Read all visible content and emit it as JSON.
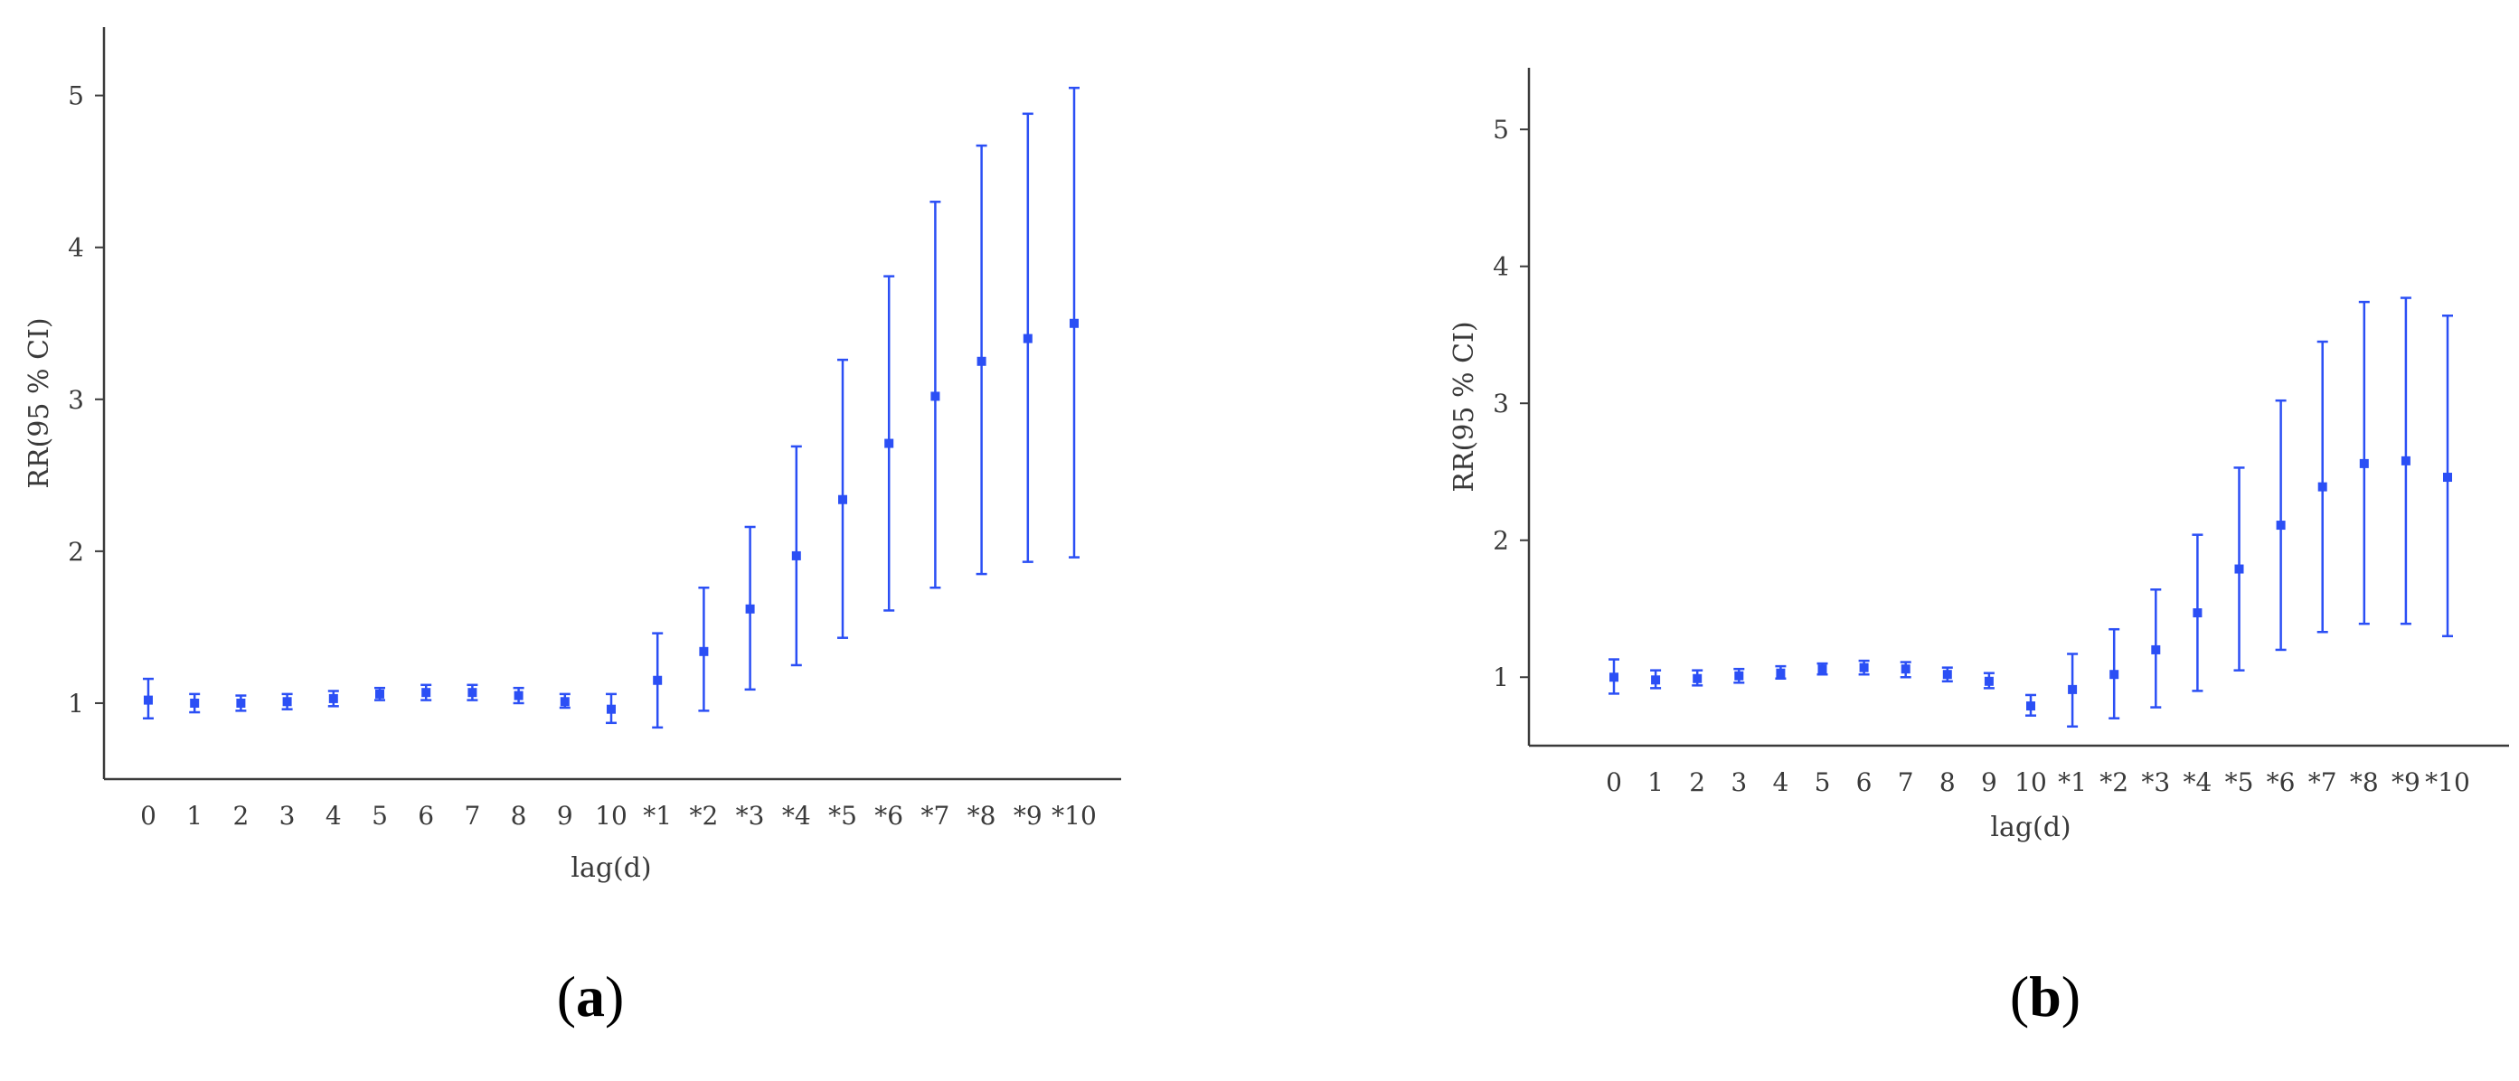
{
  "chart_data": [
    {
      "type": "scatter",
      "panel_label": "a",
      "xlabel": "lag(d)",
      "ylabel": "RR(95 % CI)",
      "ylim": [
        0.5,
        5.45
      ],
      "yticks": [
        1,
        2,
        3,
        4,
        5
      ],
      "categories": [
        "0",
        "1",
        "2",
        "3",
        "4",
        "5",
        "6",
        "7",
        "8",
        "9",
        "10",
        "*1",
        "*2",
        "*3",
        "*4",
        "*5",
        "*6",
        "*7",
        "*8",
        "*9",
        "*10"
      ],
      "series": [
        {
          "estimate": [
            1.02,
            1.0,
            1.0,
            1.01,
            1.03,
            1.06,
            1.07,
            1.07,
            1.05,
            1.01,
            0.96,
            1.15,
            1.34,
            1.62,
            1.97,
            2.34,
            2.71,
            3.02,
            3.25,
            3.4,
            3.5
          ],
          "lower": [
            0.9,
            0.94,
            0.95,
            0.96,
            0.98,
            1.02,
            1.02,
            1.02,
            1.0,
            0.97,
            0.87,
            0.84,
            0.95,
            1.09,
            1.25,
            1.43,
            1.61,
            1.76,
            1.85,
            1.93,
            1.96
          ],
          "upper": [
            1.16,
            1.06,
            1.05,
            1.06,
            1.08,
            1.1,
            1.12,
            1.12,
            1.1,
            1.06,
            1.06,
            1.46,
            1.76,
            2.16,
            2.69,
            3.26,
            3.81,
            4.3,
            4.67,
            4.88,
            5.05
          ]
        }
      ]
    },
    {
      "type": "scatter",
      "panel_label": "b",
      "xlabel": "lag(d)",
      "ylabel": "RR(95 % CI)",
      "ylim": [
        0.5,
        5.45
      ],
      "yticks": [
        1,
        2,
        3,
        4,
        5
      ],
      "categories": [
        "0",
        "1",
        "2",
        "3",
        "4",
        "5",
        "6",
        "7",
        "8",
        "9",
        "10",
        "*1",
        "*2",
        "*3",
        "*4",
        "*5",
        "*6",
        "*7",
        "*8",
        "*9",
        "*10"
      ],
      "series": [
        {
          "estimate": [
            1.0,
            0.98,
            0.99,
            1.01,
            1.03,
            1.06,
            1.07,
            1.06,
            1.02,
            0.97,
            0.79,
            0.91,
            1.02,
            1.2,
            1.47,
            1.79,
            2.11,
            2.39,
            2.56,
            2.58,
            2.46
          ],
          "lower": [
            0.88,
            0.92,
            0.94,
            0.96,
            0.99,
            1.02,
            1.02,
            1.0,
            0.97,
            0.92,
            0.72,
            0.64,
            0.7,
            0.78,
            0.9,
            1.05,
            1.2,
            1.33,
            1.39,
            1.39,
            1.3
          ],
          "upper": [
            1.13,
            1.05,
            1.05,
            1.06,
            1.08,
            1.1,
            1.12,
            1.11,
            1.07,
            1.03,
            0.87,
            1.17,
            1.35,
            1.64,
            2.04,
            2.53,
            3.02,
            3.45,
            3.74,
            3.77,
            3.64
          ]
        }
      ]
    }
  ],
  "colors": {
    "series": "#2b4ff5",
    "axis": "#3a3a3a"
  }
}
